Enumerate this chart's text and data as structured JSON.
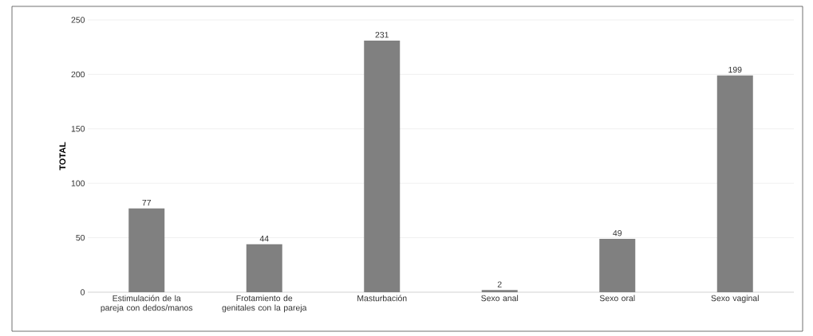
{
  "chart_data": {
    "type": "bar",
    "ylabel": "TOTAL",
    "categories": [
      "Estimulación de la pareja con dedos/manos",
      "Frotamiento de genitales con la pareja",
      "Masturbación",
      "Sexo anal",
      "Sexo oral",
      "Sexo vaginal"
    ],
    "values": [
      77,
      44,
      231,
      2,
      49,
      199
    ],
    "color": "#808080",
    "ylim": [
      0,
      250
    ],
    "yticks": [
      0,
      50,
      100,
      150,
      200,
      250
    ],
    "grid": "y",
    "data_labels": true
  }
}
